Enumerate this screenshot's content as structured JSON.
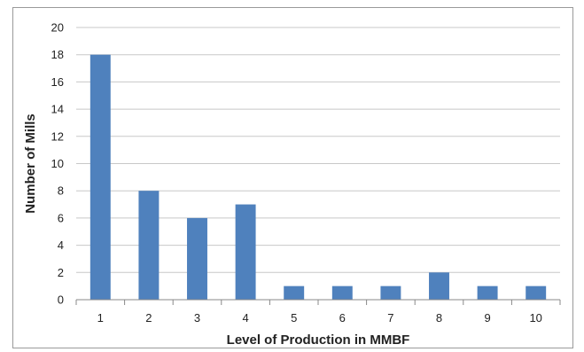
{
  "chart_data": {
    "type": "bar",
    "title": "",
    "xlabel": "Level of Production in MMBF",
    "ylabel": "Number of Mills",
    "categories": [
      "1",
      "2",
      "3",
      "4",
      "5",
      "6",
      "7",
      "8",
      "9",
      "10"
    ],
    "values": [
      18,
      8,
      6,
      7,
      1,
      1,
      1,
      2,
      1,
      1
    ],
    "ylim": [
      0,
      20
    ],
    "y_ticks": [
      "0",
      "2",
      "4",
      "6",
      "8",
      "10",
      "12",
      "14",
      "16",
      "18",
      "20"
    ],
    "grid": true,
    "legend": "none",
    "bar_color": "#4f81bd"
  }
}
